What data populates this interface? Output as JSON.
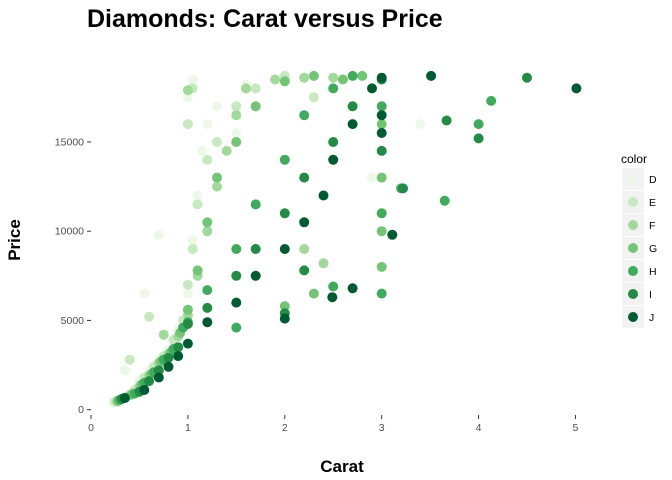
{
  "chart_data": {
    "type": "scatter",
    "title": "Diamonds: Carat versus Price",
    "xlabel": "Carat",
    "ylabel": "Price",
    "xlim": [
      0,
      5.15
    ],
    "ylim": [
      -300,
      19200
    ],
    "x_ticks": [
      0,
      1,
      2,
      3,
      4,
      5
    ],
    "y_ticks": [
      0,
      5000,
      10000,
      15000
    ],
    "grid": false,
    "legend": {
      "title": "color",
      "position": "right",
      "entries": [
        {
          "name": "D",
          "color": "#edf8e9"
        },
        {
          "name": "E",
          "color": "#c7e9c0"
        },
        {
          "name": "F",
          "color": "#a1d99b"
        },
        {
          "name": "G",
          "color": "#74c476"
        },
        {
          "name": "H",
          "color": "#41ab5d"
        },
        {
          "name": "I",
          "color": "#238b45"
        },
        {
          "name": "J",
          "color": "#005a32"
        }
      ]
    },
    "series": [
      {
        "name": "D",
        "color": "#edf8e9",
        "points": [
          [
            0.23,
            400
          ],
          [
            0.3,
            600
          ],
          [
            0.4,
            900
          ],
          [
            0.5,
            1600
          ],
          [
            0.6,
            2200
          ],
          [
            0.7,
            2800
          ],
          [
            0.8,
            3300
          ],
          [
            0.9,
            4500
          ],
          [
            1.0,
            6500
          ],
          [
            1.05,
            9500
          ],
          [
            1.1,
            12000
          ],
          [
            1.15,
            14500
          ],
          [
            1.2,
            16000
          ],
          [
            1.0,
            17500
          ],
          [
            1.05,
            18500
          ],
          [
            1.3,
            17000
          ],
          [
            1.5,
            15500
          ],
          [
            1.6,
            18200
          ],
          [
            2.0,
            18500
          ],
          [
            2.9,
            13000
          ],
          [
            3.4,
            16000
          ],
          [
            0.35,
            2200
          ],
          [
            0.55,
            6500
          ],
          [
            0.7,
            9800
          ]
        ]
      },
      {
        "name": "E",
        "color": "#c7e9c0",
        "points": [
          [
            0.25,
            450
          ],
          [
            0.35,
            700
          ],
          [
            0.45,
            1100
          ],
          [
            0.55,
            1800
          ],
          [
            0.65,
            2400
          ],
          [
            0.75,
            3000
          ],
          [
            0.85,
            3900
          ],
          [
            0.95,
            5000
          ],
          [
            1.0,
            7000
          ],
          [
            1.05,
            9000
          ],
          [
            1.1,
            11500
          ],
          [
            1.2,
            14000
          ],
          [
            1.0,
            16000
          ],
          [
            1.05,
            18000
          ],
          [
            1.3,
            15000
          ],
          [
            1.5,
            17000
          ],
          [
            1.7,
            18000
          ],
          [
            2.0,
            18700
          ],
          [
            2.3,
            17500
          ],
          [
            0.4,
            2800
          ],
          [
            0.6,
            5200
          ]
        ]
      },
      {
        "name": "F",
        "color": "#a1d99b",
        "points": [
          [
            0.27,
            450
          ],
          [
            0.4,
            800
          ],
          [
            0.5,
            1300
          ],
          [
            0.6,
            1900
          ],
          [
            0.7,
            2600
          ],
          [
            0.8,
            3100
          ],
          [
            0.9,
            4100
          ],
          [
            1.0,
            5300
          ],
          [
            1.1,
            7500
          ],
          [
            1.2,
            10000
          ],
          [
            1.3,
            12500
          ],
          [
            1.4,
            14500
          ],
          [
            1.5,
            16500
          ],
          [
            1.6,
            18000
          ],
          [
            1.9,
            18500
          ],
          [
            2.2,
            18600
          ],
          [
            2.5,
            18600
          ],
          [
            2.2,
            9000
          ],
          [
            2.4,
            8200
          ],
          [
            1.0,
            17900
          ],
          [
            0.75,
            4200
          ]
        ]
      },
      {
        "name": "G",
        "color": "#74c476",
        "points": [
          [
            0.28,
            500
          ],
          [
            0.42,
            850
          ],
          [
            0.52,
            1400
          ],
          [
            0.62,
            2000
          ],
          [
            0.72,
            2700
          ],
          [
            0.82,
            3200
          ],
          [
            0.92,
            4300
          ],
          [
            1.0,
            5600
          ],
          [
            1.1,
            7800
          ],
          [
            1.2,
            10500
          ],
          [
            1.3,
            13000
          ],
          [
            1.5,
            15000
          ],
          [
            1.7,
            17000
          ],
          [
            2.0,
            18400
          ],
          [
            2.3,
            18700
          ],
          [
            2.6,
            18500
          ],
          [
            2.8,
            18700
          ],
          [
            3.0,
            13000
          ],
          [
            3.0,
            10000
          ],
          [
            3.0,
            8000
          ],
          [
            3.0,
            16000
          ],
          [
            2.3,
            6500
          ],
          [
            2.0,
            5800
          ]
        ]
      },
      {
        "name": "H",
        "color": "#41ab5d",
        "points": [
          [
            0.3,
            550
          ],
          [
            0.45,
            900
          ],
          [
            0.55,
            1500
          ],
          [
            0.65,
            2100
          ],
          [
            0.75,
            2800
          ],
          [
            0.85,
            3400
          ],
          [
            0.95,
            4600
          ],
          [
            1.0,
            4900
          ],
          [
            1.2,
            6700
          ],
          [
            1.5,
            9000
          ],
          [
            1.7,
            11500
          ],
          [
            2.0,
            14000
          ],
          [
            2.2,
            16500
          ],
          [
            2.5,
            18000
          ],
          [
            2.7,
            18700
          ],
          [
            3.0,
            17000
          ],
          [
            3.0,
            11000
          ],
          [
            3.0,
            6500
          ],
          [
            3.2,
            12400
          ],
          [
            4.0,
            16000
          ],
          [
            3.65,
            11700
          ],
          [
            4.13,
            17300
          ],
          [
            2.5,
            6900
          ],
          [
            1.5,
            4600
          ]
        ]
      },
      {
        "name": "I",
        "color": "#238b45",
        "points": [
          [
            0.32,
            600
          ],
          [
            0.5,
            1000
          ],
          [
            0.6,
            1600
          ],
          [
            0.7,
            2200
          ],
          [
            0.8,
            2900
          ],
          [
            0.9,
            3500
          ],
          [
            1.0,
            4800
          ],
          [
            1.2,
            5700
          ],
          [
            1.5,
            7500
          ],
          [
            1.7,
            9000
          ],
          [
            2.0,
            11000
          ],
          [
            2.2,
            13000
          ],
          [
            2.5,
            15000
          ],
          [
            2.7,
            17000
          ],
          [
            3.0,
            18500
          ],
          [
            3.0,
            14500
          ],
          [
            3.22,
            12400
          ],
          [
            3.67,
            16200
          ],
          [
            4.0,
            15200
          ],
          [
            4.5,
            18600
          ],
          [
            2.2,
            7800
          ],
          [
            2.0,
            5400
          ]
        ]
      },
      {
        "name": "J",
        "color": "#005a32",
        "points": [
          [
            0.35,
            650
          ],
          [
            0.55,
            1100
          ],
          [
            0.7,
            1800
          ],
          [
            0.8,
            2400
          ],
          [
            0.9,
            3000
          ],
          [
            1.0,
            3700
          ],
          [
            1.2,
            4900
          ],
          [
            1.5,
            6000
          ],
          [
            1.7,
            7500
          ],
          [
            2.0,
            9000
          ],
          [
            2.2,
            10500
          ],
          [
            2.4,
            12000
          ],
          [
            2.5,
            14000
          ],
          [
            2.7,
            16000
          ],
          [
            2.9,
            18000
          ],
          [
            3.0,
            18600
          ],
          [
            3.0,
            16500
          ],
          [
            3.0,
            15500
          ],
          [
            3.11,
            9800
          ],
          [
            3.51,
            18700
          ],
          [
            5.01,
            18000
          ],
          [
            2.49,
            6300
          ],
          [
            2.7,
            6800
          ],
          [
            2.0,
            5100
          ]
        ]
      }
    ]
  }
}
